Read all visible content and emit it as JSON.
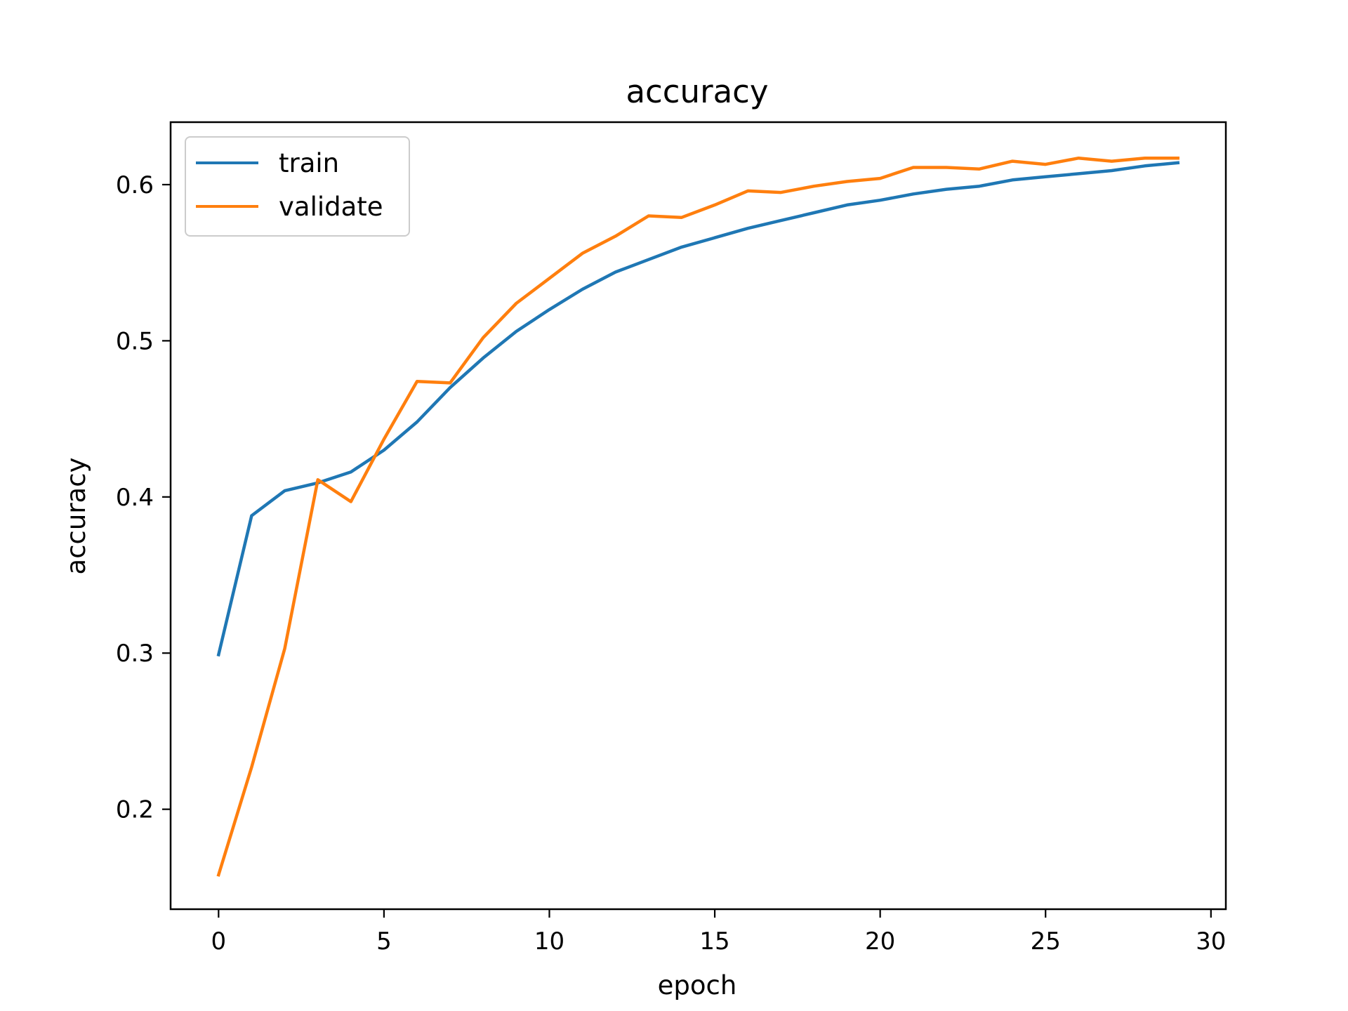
{
  "chart_data": {
    "type": "line",
    "title": "accuracy",
    "xlabel": "epoch",
    "ylabel": "accuracy",
    "xlim": [
      -1.45,
      30.45
    ],
    "ylim": [
      0.136,
      0.64
    ],
    "xticks": [
      0,
      5,
      10,
      15,
      20,
      25,
      30
    ],
    "yticks": [
      0.2,
      0.3,
      0.4,
      0.5,
      0.6
    ],
    "xtick_labels": [
      "0",
      "5",
      "10",
      "15",
      "20",
      "25",
      "30"
    ],
    "ytick_labels": [
      "0.2",
      "0.3",
      "0.4",
      "0.5",
      "0.6"
    ],
    "grid": false,
    "legend_position": "upper-left",
    "x": [
      0,
      1,
      2,
      3,
      4,
      5,
      6,
      7,
      8,
      9,
      10,
      11,
      12,
      13,
      14,
      15,
      16,
      17,
      18,
      19,
      20,
      21,
      22,
      23,
      24,
      25,
      26,
      27,
      28,
      29
    ],
    "series": [
      {
        "name": "train",
        "color": "#1f77b4",
        "values": [
          0.299,
          0.388,
          0.404,
          0.409,
          0.416,
          0.43,
          0.448,
          0.47,
          0.489,
          0.506,
          0.52,
          0.533,
          0.544,
          0.552,
          0.56,
          0.566,
          0.572,
          0.577,
          0.582,
          0.587,
          0.59,
          0.594,
          0.597,
          0.599,
          0.603,
          0.605,
          0.607,
          0.609,
          0.612,
          0.614
        ]
      },
      {
        "name": "validate",
        "color": "#ff7f0e",
        "values": [
          0.158,
          0.227,
          0.303,
          0.411,
          0.397,
          0.437,
          0.474,
          0.473,
          0.502,
          0.524,
          0.54,
          0.556,
          0.567,
          0.58,
          0.579,
          0.587,
          0.596,
          0.595,
          0.599,
          0.602,
          0.604,
          0.611,
          0.611,
          0.61,
          0.615,
          0.613,
          0.617,
          0.615,
          0.617,
          0.617
        ]
      }
    ]
  }
}
